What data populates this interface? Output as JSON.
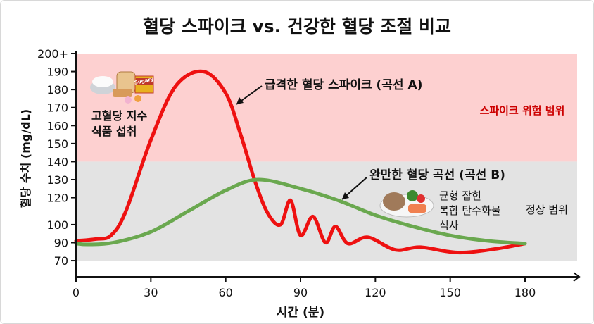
{
  "chart_data": {
    "type": "line",
    "title": "혈당 스파이크 vs. 건강한 혈당 조절 비교",
    "xlabel": "시간 (분)",
    "ylabel": "혈당 수치 (mg/dL)",
    "xlim": [
      0,
      180
    ],
    "x_ticks": [
      0,
      30,
      60,
      90,
      120,
      150,
      180
    ],
    "y_ticks": [
      "200+",
      "190",
      "180",
      "170",
      "160",
      "150",
      "140",
      "130",
      "120",
      "100",
      "90",
      "70"
    ],
    "y_scale_note_visible": false,
    "grid": false,
    "regions": [
      {
        "label": "스파이크 위험 범위",
        "from": 140,
        "to": 200,
        "color": "#fdd0d0",
        "label_color": "#cc0000"
      },
      {
        "label": "정상 범위",
        "from": 70,
        "to": 140,
        "color": "#e3e3e3",
        "label_color": "#111111"
      }
    ],
    "series": [
      {
        "name": "급격한 혈당 스파이크 (곡선 A)",
        "color": "#ee1111",
        "x": [
          0,
          8,
          14,
          20,
          30,
          40,
          51,
          60,
          66,
          72,
          77,
          82,
          86,
          90,
          95,
          100,
          104,
          109,
          117,
          128,
          138,
          153,
          168,
          180
        ],
        "y": [
          91,
          92,
          94,
          110,
          152,
          182,
          190,
          178,
          155,
          128,
          108,
          100,
          118,
          94,
          106,
          90,
          99,
          89,
          93,
          82,
          85,
          79,
          83,
          89
        ]
      },
      {
        "name": "완만한 혈당 곡선 (곡선 B)",
        "color": "#6aa84f",
        "x": [
          0,
          5,
          15,
          30,
          45,
          60,
          73,
          90,
          105,
          120,
          135,
          150,
          165,
          180
        ],
        "y": [
          89,
          88,
          90,
          96,
          110,
          124,
          130,
          125,
          118,
          107,
          99,
          94,
          91,
          89
        ]
      }
    ],
    "annotations": {
      "food_high": "고혈당 지수\n식품 섭취",
      "food_high_line1": "고혈당 지수",
      "food_high_line2": "식품 섭취",
      "food_balanced_line1": "균형 잡힌",
      "food_balanced_line2": "복합 탄수화물",
      "food_balanced_line3": "식사",
      "snack_label": "Sugary"
    }
  }
}
